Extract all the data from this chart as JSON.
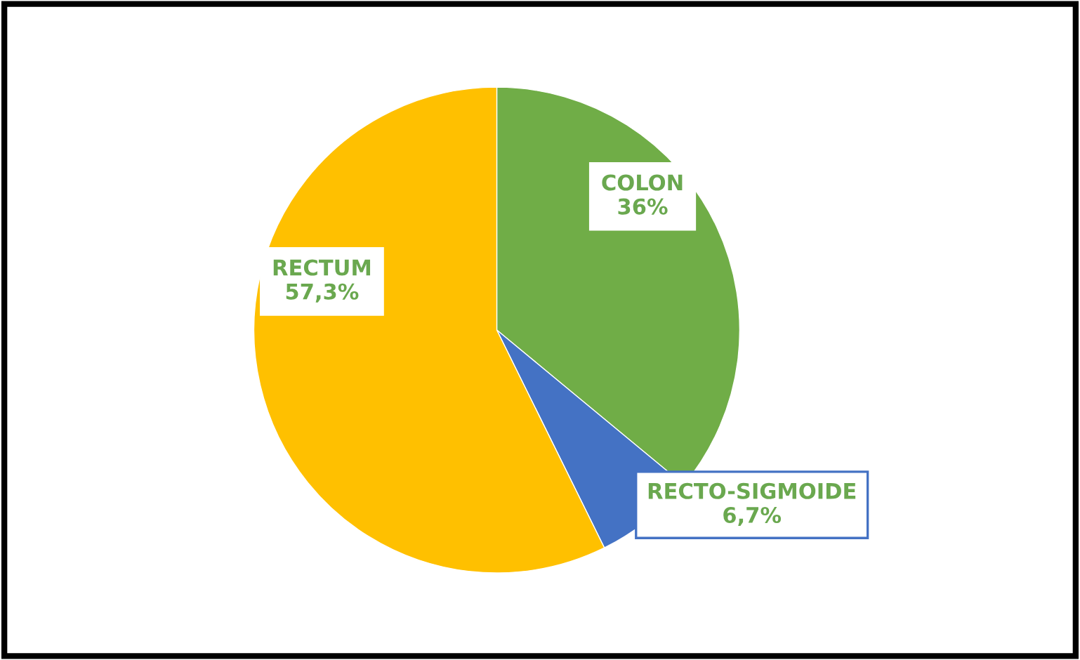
{
  "chart_data": {
    "type": "pie",
    "categories": [
      "COLON",
      "RECTO-SIGMOIDE",
      "RECTUM"
    ],
    "values": [
      36,
      6.7,
      57.3
    ],
    "value_labels": [
      "36%",
      "6,7%",
      "57,3%"
    ],
    "colors": [
      "#70ad47",
      "#4472c4",
      "#ffc000"
    ],
    "legend": false
  }
}
